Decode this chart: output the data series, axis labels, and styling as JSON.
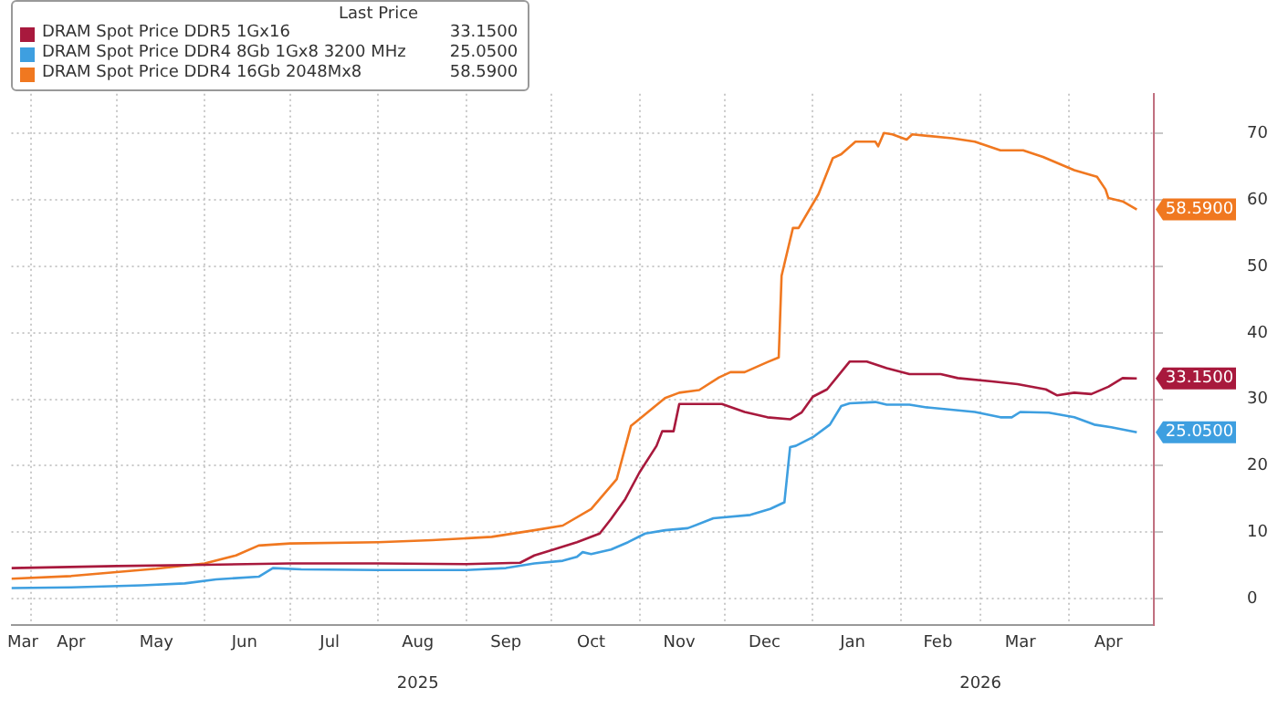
{
  "chart_data": {
    "type": "line",
    "legend_title": "Last Price",
    "legend": "top left",
    "grid": true,
    "xlim": [
      "2025-03-25",
      "2026-05-01"
    ],
    "xticks": [
      {
        "value": "2025-03-29",
        "label": "Mar"
      },
      {
        "value": "2025-04-01",
        "label": null
      },
      {
        "value": "2025-04-15",
        "label": "Apr"
      },
      {
        "value": "2025-05-01",
        "label": null
      },
      {
        "value": "2025-05-15",
        "label": "May"
      },
      {
        "value": "2025-06-01",
        "label": null
      },
      {
        "value": "2025-06-15",
        "label": "Jun"
      },
      {
        "value": "2025-07-01",
        "label": null
      },
      {
        "value": "2025-07-15",
        "label": "Jul"
      },
      {
        "value": "2025-08-01",
        "label": null
      },
      {
        "value": "2025-08-15",
        "label": "Aug"
      },
      {
        "value": "2025-09-01",
        "label": null
      },
      {
        "value": "2025-09-15",
        "label": "Sep"
      },
      {
        "value": "2025-10-01",
        "label": null
      },
      {
        "value": "2025-10-15",
        "label": "Oct"
      },
      {
        "value": "2025-11-01",
        "label": null
      },
      {
        "value": "2025-11-15",
        "label": "Nov"
      },
      {
        "value": "2025-12-01",
        "label": null
      },
      {
        "value": "2025-12-15",
        "label": "Dec"
      },
      {
        "value": "2026-01-01",
        "label": null
      },
      {
        "value": "2026-01-15",
        "label": "Jan"
      },
      {
        "value": "2026-02-01",
        "label": null
      },
      {
        "value": "2026-02-14",
        "label": "Feb"
      },
      {
        "value": "2026-03-01",
        "label": null
      },
      {
        "value": "2026-03-15",
        "label": "Mar"
      },
      {
        "value": "2026-04-01",
        "label": null
      },
      {
        "value": "2026-04-15",
        "label": "Apr"
      }
    ],
    "x2lim": [
      "2025-03-25",
      "2026-05-01"
    ],
    "x2ticks": [
      {
        "value": "2025-08-15",
        "label": "2025"
      },
      {
        "value": "2026-03-01",
        "label": "2026"
      }
    ],
    "ylim": [
      -4,
      76
    ],
    "yticks": [
      0,
      10,
      20,
      30,
      40,
      50,
      60,
      70
    ],
    "series": [
      {
        "name": "DRAM Spot Price DDR5 1Gx16",
        "color": "#a8193d",
        "x": [
          "2025-03-25",
          "2025-05-01",
          "2025-06-01",
          "2025-07-01",
          "2025-08-01",
          "2025-09-01",
          "2025-09-20",
          "2025-09-25",
          "2025-10-01",
          "2025-10-10",
          "2025-10-18",
          "2025-10-22",
          "2025-10-27",
          "2025-11-01",
          "2025-11-07",
          "2025-11-09",
          "2025-11-13",
          "2025-11-15",
          "2025-11-30",
          "2025-12-08",
          "2025-12-16",
          "2025-12-24",
          "2025-12-28",
          "2026-01-01",
          "2026-01-06",
          "2026-01-14",
          "2026-01-20",
          "2026-01-27",
          "2026-02-04",
          "2026-02-15",
          "2026-02-21",
          "2026-03-05",
          "2026-03-14",
          "2026-03-24",
          "2026-03-28",
          "2026-04-03",
          "2026-04-09",
          "2026-04-15",
          "2026-04-20",
          "2026-04-25"
        ],
        "values": [
          4.6,
          4.9,
          5.1,
          5.3,
          5.3,
          5.2,
          5.4,
          6.5,
          7.3,
          8.5,
          9.8,
          12,
          15,
          19,
          23,
          25.2,
          25.2,
          29.3,
          29.3,
          28.1,
          27.3,
          27,
          28,
          30.4,
          31.5,
          35.7,
          35.7,
          34.7,
          33.8,
          33.8,
          33.2,
          32.7,
          32.3,
          31.5,
          30.6,
          31,
          30.8,
          31.9,
          33.2,
          33.15
        ],
        "value_labels": [
          null,
          null,
          null,
          null,
          null,
          null,
          null,
          null,
          null,
          null,
          null,
          null,
          null,
          null,
          null,
          null,
          null,
          null,
          null,
          null,
          null,
          null,
          null,
          null,
          null,
          null,
          null,
          null,
          null,
          null,
          null,
          null,
          null,
          null,
          null,
          null,
          null,
          null,
          null,
          "33.1500"
        ]
      },
      {
        "name": "DRAM Spot Price DDR4 8Gb 1Gx8 3200 MHz",
        "color": "#3e9fe0",
        "x": [
          "2025-03-25",
          "2025-04-15",
          "2025-05-10",
          "2025-05-25",
          "2025-06-05",
          "2025-06-20",
          "2025-06-25",
          "2025-07-05",
          "2025-08-01",
          "2025-09-01",
          "2025-09-15",
          "2025-09-25",
          "2025-10-05",
          "2025-10-10",
          "2025-10-12",
          "2025-10-15",
          "2025-10-22",
          "2025-10-28",
          "2025-11-03",
          "2025-11-10",
          "2025-11-18",
          "2025-11-27",
          "2025-12-10",
          "2025-12-17",
          "2025-12-22",
          "2025-12-24",
          "2025-12-26",
          "2026-01-01",
          "2026-01-07",
          "2026-01-11",
          "2026-01-14",
          "2026-01-23",
          "2026-01-27",
          "2026-02-04",
          "2026-02-10",
          "2026-02-27",
          "2026-03-08",
          "2026-03-12",
          "2026-03-15",
          "2026-03-25",
          "2026-04-03",
          "2026-04-10",
          "2026-04-16",
          "2026-04-25"
        ],
        "values": [
          1.6,
          1.7,
          2.0,
          2.3,
          2.9,
          3.3,
          4.6,
          4.4,
          4.3,
          4.3,
          4.6,
          5.3,
          5.7,
          6.3,
          7.0,
          6.7,
          7.4,
          8.5,
          9.8,
          10.3,
          10.6,
          12.1,
          12.6,
          13.5,
          14.5,
          22.8,
          23,
          24.3,
          26.2,
          29,
          29.4,
          29.6,
          29.2,
          29.2,
          28.8,
          28.1,
          27.3,
          27.3,
          28.1,
          28,
          27.3,
          26.2,
          25.8,
          25.05
        ],
        "value_labels": [
          null,
          null,
          null,
          null,
          null,
          null,
          null,
          null,
          null,
          null,
          null,
          null,
          null,
          null,
          null,
          null,
          null,
          null,
          null,
          null,
          null,
          null,
          null,
          null,
          null,
          null,
          null,
          null,
          null,
          null,
          null,
          null,
          null,
          null,
          null,
          null,
          null,
          null,
          null,
          null,
          null,
          null,
          null,
          "25.0500"
        ]
      },
      {
        "name": "DRAM Spot Price DDR4 16Gb 2048Mx8",
        "color": "#f07820",
        "x": [
          "2025-03-25",
          "2025-04-15",
          "2025-05-15",
          "2025-06-01",
          "2025-06-12",
          "2025-06-20",
          "2025-07-01",
          "2025-08-01",
          "2025-08-20",
          "2025-09-10",
          "2025-09-25",
          "2025-10-05",
          "2025-10-15",
          "2025-10-24",
          "2025-10-29",
          "2025-10-31",
          "2025-11-10",
          "2025-11-15",
          "2025-11-22",
          "2025-11-29",
          "2025-12-03",
          "2025-12-08",
          "2025-12-16",
          "2025-12-20",
          "2025-12-21",
          "2025-12-25",
          "2025-12-27",
          "2026-01-03",
          "2026-01-08",
          "2026-01-11",
          "2026-01-16",
          "2026-01-23",
          "2026-01-24",
          "2026-01-26",
          "2026-01-29",
          "2026-02-03",
          "2026-02-05",
          "2026-02-19",
          "2026-02-27",
          "2026-03-08",
          "2026-03-16",
          "2026-03-23",
          "2026-04-03",
          "2026-04-11",
          "2026-04-14",
          "2026-04-15",
          "2026-04-20",
          "2026-04-25"
        ],
        "values": [
          3.0,
          3.4,
          4.5,
          5.3,
          6.5,
          8.0,
          8.3,
          8.5,
          8.8,
          9.3,
          10.3,
          11.0,
          13.5,
          18,
          26,
          26.7,
          30.2,
          31,
          31.4,
          33.3,
          34.1,
          34.1,
          35.6,
          36.3,
          48.6,
          55.8,
          55.8,
          60.9,
          66.3,
          66.9,
          68.8,
          68.8,
          68.1,
          70.1,
          69.9,
          69.1,
          69.9,
          69.3,
          68.8,
          67.5,
          67.5,
          66.5,
          64.5,
          63.5,
          61.6,
          60.3,
          59.8,
          58.59
        ],
        "value_labels": [
          null,
          null,
          null,
          null,
          null,
          null,
          null,
          null,
          null,
          null,
          null,
          null,
          null,
          null,
          null,
          null,
          null,
          null,
          null,
          null,
          null,
          null,
          null,
          null,
          null,
          null,
          null,
          null,
          null,
          null,
          null,
          null,
          null,
          null,
          null,
          null,
          null,
          null,
          null,
          null,
          null,
          null,
          null,
          null,
          null,
          null,
          null,
          "58.5900"
        ]
      }
    ]
  }
}
